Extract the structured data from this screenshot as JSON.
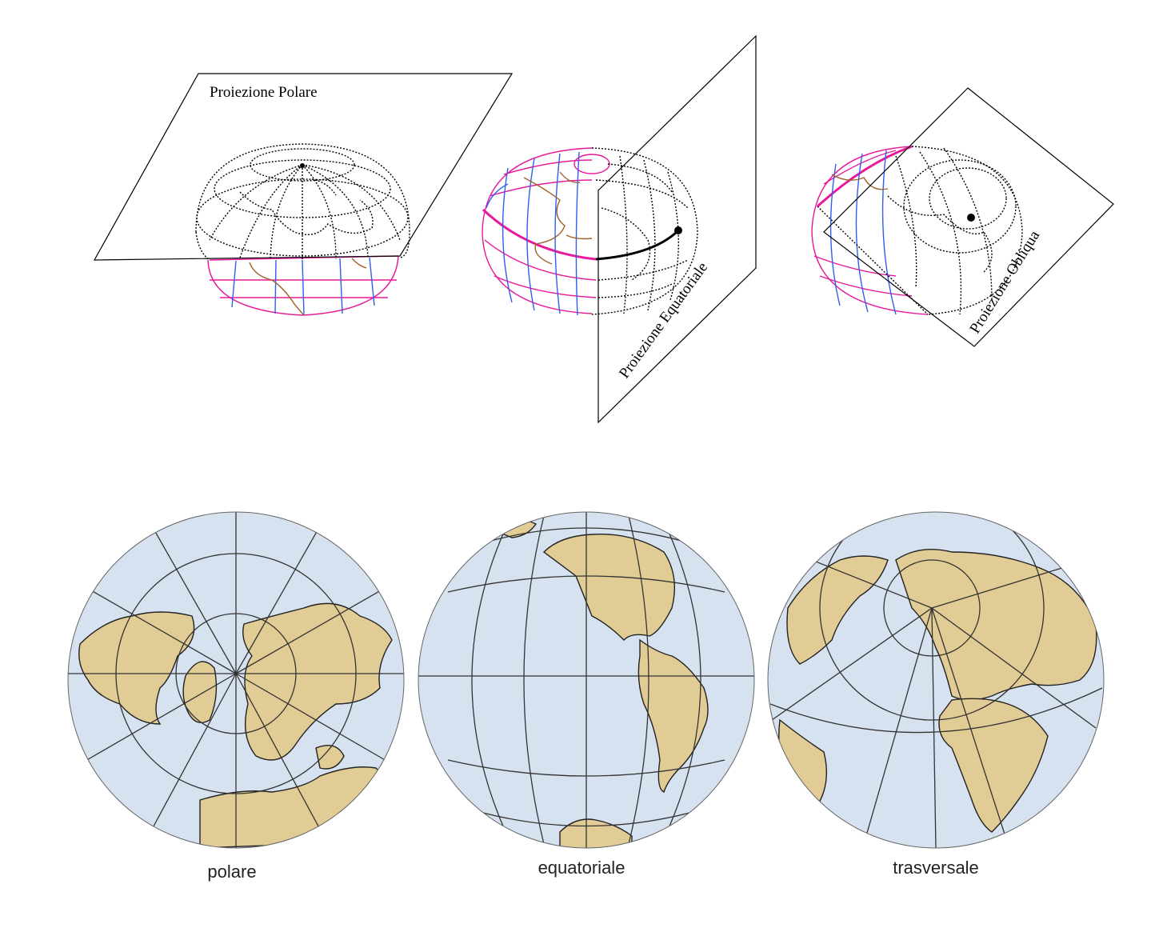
{
  "labels": {
    "polar_plane": "Proiezione Polare",
    "equatorial_plane": "Proiezione Equatoriale",
    "oblique_plane": "Proiezione Obliqua"
  },
  "captions": {
    "polar": "polare",
    "equatorial": "equatoriale",
    "transverse": "trasversale"
  },
  "colors": {
    "ocean": "#d6e2ef",
    "land": "#e2cc96",
    "graticule": "#333333",
    "parallel_pink": "#e8199a",
    "meridian_blue": "#2f5ff0",
    "coast_brown": "#a0622d",
    "dotted": "#000000"
  }
}
